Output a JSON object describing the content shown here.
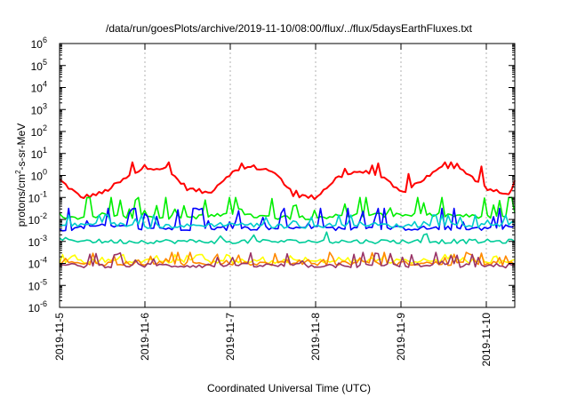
{
  "chart_data": {
    "type": "line",
    "title": "/data/run/goesPlots/archive/2019-11-10/08:00/flux/../flux/5daysEarthFluxes.txt",
    "xlabel": "Coordinated Universal Time (UTC)",
    "ylabel": "protons/cm2-s-sr-MeV",
    "ylabel_parts": {
      "pre": "protons/cm",
      "sup": "2",
      "post": "-s-sr-MeV"
    },
    "y_scale": "log",
    "ylim_exp": [
      -6,
      6
    ],
    "ylim": [
      1e-06,
      1000000
    ],
    "xlim": [
      "2019-11-05",
      "2019-11-10 08:00"
    ],
    "y_ticks": [
      {
        "base": "10",
        "exp": "6"
      },
      {
        "base": "10",
        "exp": "5"
      },
      {
        "base": "10",
        "exp": "4"
      },
      {
        "base": "10",
        "exp": "3"
      },
      {
        "base": "10",
        "exp": "2"
      },
      {
        "base": "10",
        "exp": "1"
      },
      {
        "base": "10",
        "exp": "0"
      },
      {
        "base": "10",
        "exp": "-1"
      },
      {
        "base": "10",
        "exp": "-2"
      },
      {
        "base": "10",
        "exp": "-3"
      },
      {
        "base": "10",
        "exp": "-4"
      },
      {
        "base": "10",
        "exp": "-5"
      },
      {
        "base": "10",
        "exp": "-6"
      }
    ],
    "x_ticks": [
      "2019-11-5",
      "2019-11-6",
      "2019-11-7",
      "2019-11-8",
      "2019-11-9",
      "2019-11-10"
    ],
    "grid": "dashed vertical lines at each day",
    "legend": "none",
    "series": [
      {
        "color": "#ff0000",
        "log10_min": -1.3,
        "log10_max": 0.6,
        "x_days": [
          0,
          0.25,
          0.5,
          0.75,
          1,
          1.25,
          1.5,
          1.75,
          2,
          2.25,
          2.5,
          2.75,
          3,
          3.25,
          3.5,
          3.75,
          4,
          4.25,
          4.5,
          4.75,
          5,
          5.25,
          5.33
        ],
        "log10_values": [
          -0.2,
          -1.0,
          -0.8,
          -0.2,
          0.4,
          0.3,
          -0.6,
          -0.8,
          0.1,
          0.4,
          0.2,
          -0.9,
          -1.0,
          -0.1,
          0.2,
          0.0,
          -0.8,
          -0.2,
          0.4,
          0.2,
          -0.6,
          -0.9,
          -0.3
        ]
      },
      {
        "color": "#00ee00",
        "log10_min": -2.4,
        "log10_max": -1.0,
        "x_days": [
          0,
          0.5,
          1,
          1.5,
          2,
          2.5,
          3,
          3.5,
          4,
          4.5,
          5,
          5.33
        ],
        "log10_values": [
          -2.0,
          -1.8,
          -1.9,
          -1.9,
          -1.8,
          -1.9,
          -1.9,
          -1.8,
          -1.8,
          -1.8,
          -1.9,
          -1.8
        ]
      },
      {
        "color": "#0000ff",
        "log10_min": -3.2,
        "log10_max": -1.5,
        "x_days": [
          0,
          0.5,
          1,
          1.5,
          2,
          2.5,
          3,
          3.5,
          4,
          4.5,
          5,
          5.33
        ],
        "log10_values": [
          -2.5,
          -2.3,
          -2.4,
          -2.4,
          -2.4,
          -2.4,
          -2.4,
          -2.4,
          -2.4,
          -2.4,
          -2.4,
          -2.3
        ]
      },
      {
        "color": "#00cccc",
        "log10_min": -3.3,
        "log10_max": -1.8,
        "x_days": [
          0,
          0.5,
          1,
          1.5,
          2,
          2.5,
          3,
          3.5,
          4,
          4.5,
          5,
          5.33
        ],
        "log10_values": [
          -2.3,
          -2.2,
          -2.3,
          -2.3,
          -2.2,
          -2.3,
          -2.3,
          -2.2,
          -2.3,
          -2.2,
          -2.3,
          -2.2
        ]
      },
      {
        "color": "#00cc99",
        "log10_min": -3.1,
        "log10_max": -2.3,
        "x_days": [
          0,
          0.5,
          1,
          1.5,
          2,
          2.5,
          3,
          3.5,
          4,
          4.5,
          5,
          5.33
        ],
        "log10_values": [
          -2.9,
          -3.0,
          -3.0,
          -3.0,
          -3.0,
          -3.0,
          -3.0,
          -3.0,
          -3.0,
          -3.0,
          -3.0,
          -3.0
        ]
      },
      {
        "color": "#ffff00",
        "log10_min": -4.2,
        "log10_max": -3.6,
        "x_days": [
          0,
          0.5,
          1,
          1.5,
          2,
          2.5,
          3,
          3.5,
          4,
          4.5,
          5,
          5.33
        ],
        "log10_values": [
          -3.9,
          -3.9,
          -3.9,
          -3.9,
          -3.9,
          -3.9,
          -3.9,
          -3.9,
          -3.9,
          -3.9,
          -3.9,
          -3.9
        ]
      },
      {
        "color": "#ff8800",
        "log10_min": -4.3,
        "log10_max": -3.5,
        "x_days": [
          0,
          0.5,
          1,
          1.5,
          2,
          2.5,
          3,
          3.5,
          4,
          4.5,
          5,
          5.33
        ],
        "log10_values": [
          -4.0,
          -4.0,
          -4.0,
          -4.0,
          -4.0,
          -4.0,
          -4.0,
          -4.0,
          -4.0,
          -4.0,
          -4.0,
          -4.0
        ]
      },
      {
        "color": "#993366",
        "log10_min": -4.2,
        "log10_max": -3.5,
        "x_days": [
          0,
          0.5,
          1,
          1.5,
          2,
          2.5,
          3,
          3.5,
          4,
          4.5,
          5,
          5.33
        ],
        "log10_values": [
          -4.1,
          -4.1,
          -4.1,
          -4.1,
          -4.1,
          -4.1,
          -4.1,
          -4.1,
          -4.1,
          -4.1,
          -4.1,
          -4.1
        ]
      }
    ]
  }
}
